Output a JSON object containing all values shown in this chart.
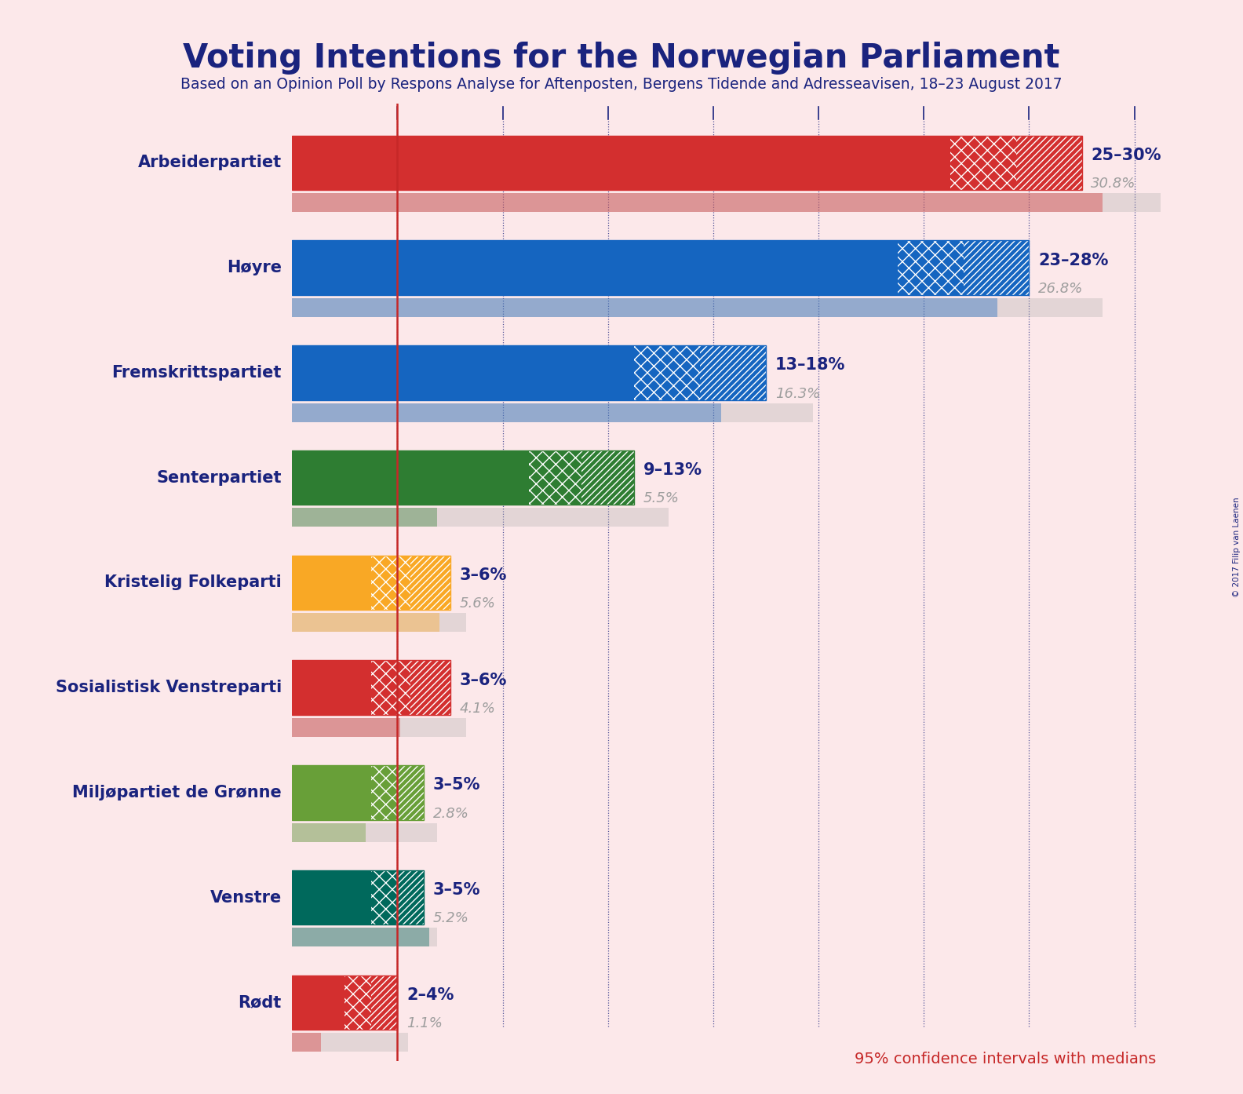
{
  "title": "Voting Intentions for the Norwegian Parliament",
  "subtitle": "Based on an Opinion Poll by Respons Analyse for Aftenposten, Bergens Tidende and Adresseavisen, 18–23 August 2017",
  "footnote": "95% confidence intervals with medians",
  "copyright": "© 2017 Filip van Laenen",
  "background_color": "#fce8ea",
  "title_color": "#1a237e",
  "subtitle_color": "#1a237e",
  "parties": [
    {
      "name": "Arbeiderpartiet",
      "ci_low": 25,
      "ci_high": 30,
      "median": 30.8,
      "color": "#d32f2f",
      "label": "25–30%",
      "median_label": "30.8%"
    },
    {
      "name": "Høyre",
      "ci_low": 23,
      "ci_high": 28,
      "median": 26.8,
      "color": "#1565c0",
      "label": "23–28%",
      "median_label": "26.8%"
    },
    {
      "name": "Fremskrittspartiet",
      "ci_low": 13,
      "ci_high": 18,
      "median": 16.3,
      "color": "#1565c0",
      "label": "13–18%",
      "median_label": "16.3%"
    },
    {
      "name": "Senterpartiet",
      "ci_low": 9,
      "ci_high": 13,
      "median": 5.5,
      "color": "#2e7d32",
      "label": "9–13%",
      "median_label": "5.5%"
    },
    {
      "name": "Kristelig Folkeparti",
      "ci_low": 3,
      "ci_high": 6,
      "median": 5.6,
      "color": "#f9a825",
      "label": "3–6%",
      "median_label": "5.6%"
    },
    {
      "name": "Sosialistisk Venstreparti",
      "ci_low": 3,
      "ci_high": 6,
      "median": 4.1,
      "color": "#d32f2f",
      "label": "3–6%",
      "median_label": "4.1%"
    },
    {
      "name": "Miljøpartiet de Grønne",
      "ci_low": 3,
      "ci_high": 5,
      "median": 2.8,
      "color": "#689f38",
      "label": "3–5%",
      "median_label": "2.8%"
    },
    {
      "name": "Venstre",
      "ci_low": 3,
      "ci_high": 5,
      "median": 5.2,
      "color": "#00695c",
      "label": "3–5%",
      "median_label": "5.2%"
    },
    {
      "name": "Rødt",
      "ci_low": 2,
      "ci_high": 4,
      "median": 1.1,
      "color": "#d32f2f",
      "label": "2–4%",
      "median_label": "1.1%"
    }
  ],
  "xmax": 34,
  "red_line_x": 4.0,
  "blue_lines_x": [
    4,
    8,
    12,
    16,
    20,
    24,
    28,
    32
  ],
  "label_color": "#1a237e",
  "median_color": "#9e9e9e",
  "tick_color": "#1a237e"
}
